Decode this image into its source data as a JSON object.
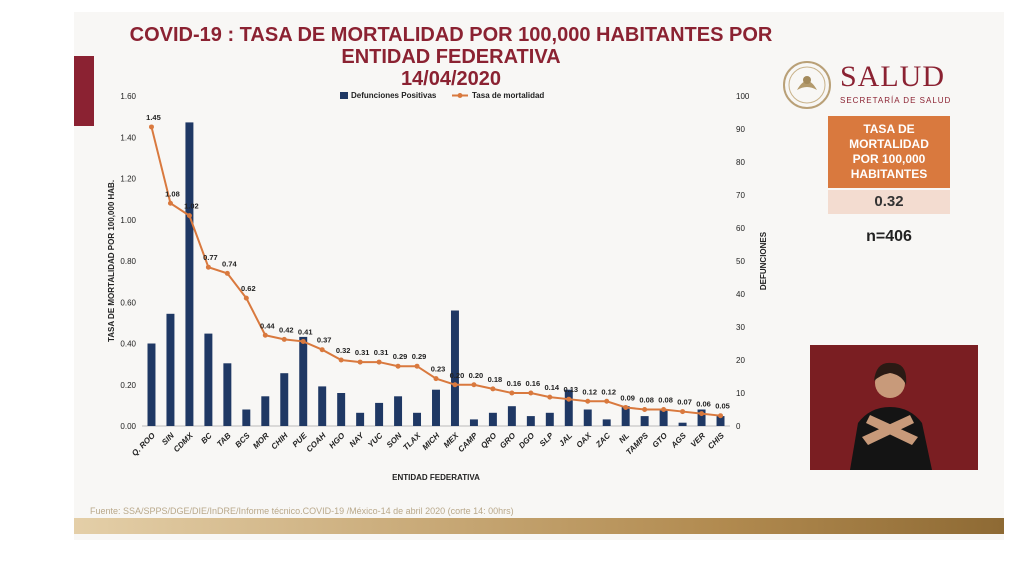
{
  "header": {
    "title_line1": "COVID-19 : TASA DE MORTALIDAD POR 100,000 HABITANTES POR",
    "title_line2": "ENTIDAD FEDERATIVA",
    "title_line3": "14/04/2020"
  },
  "logo": {
    "name": "SALUD",
    "subtitle": "SECRETARÍA DE SALUD"
  },
  "kpi": {
    "label_line1": "TASA DE",
    "label_line2": "MORTALIDAD",
    "label_line3": "POR 100,000",
    "label_line4": "HABITANTES",
    "value": "0.32",
    "n": "n=406"
  },
  "source": "Fuente: SSA/SPPS/DGE/DIE/InDRE/Informe técnico.COVID-19 /México-14 de abril 2020 (corte 14: 00hrs)",
  "colors": {
    "bar": "#1f3864",
    "line": "#d9793e",
    "brand": "#8b2232"
  },
  "chart_data": {
    "type": "bar",
    "xlabel": "ENTIDAD FEDERATIVA",
    "ylabel": "TASA DE MORTALIDAD POR 100,000 HAB.",
    "y2label": "DEFUNCIONES",
    "ylim": [
      0,
      1.6
    ],
    "y2lim": [
      0,
      100
    ],
    "yticks": [
      "0.00",
      "0.20",
      "0.40",
      "0.60",
      "0.80",
      "1.00",
      "1.20",
      "1.40",
      "1.60"
    ],
    "y2ticks": [
      "0",
      "10",
      "20",
      "30",
      "40",
      "50",
      "60",
      "70",
      "80",
      "90",
      "100"
    ],
    "categories": [
      "Q. ROO",
      "SIN",
      "CDMX",
      "BC",
      "TAB",
      "BCS",
      "MOR",
      "CHIH",
      "PUE",
      "COAH",
      "HGO",
      "NAY",
      "YUC",
      "SON",
      "TLAX",
      "MICH",
      "MEX",
      "CAMP",
      "QRO",
      "GRO",
      "DGO",
      "SLP",
      "JAL",
      "OAX",
      "ZAC",
      "NL",
      "TAMPS",
      "GTO",
      "AGS",
      "VER",
      "CHIS"
    ],
    "series": [
      {
        "name": "Defunciones Positivas",
        "type": "bar",
        "axis": "right",
        "values": [
          25,
          34,
          92,
          28,
          19,
          5,
          9,
          16,
          27,
          12,
          10,
          4,
          7,
          9,
          4,
          11,
          35,
          2,
          4,
          6,
          3,
          4,
          11,
          5,
          2,
          6,
          3,
          5,
          1,
          5,
          3
        ]
      },
      {
        "name": "Tasa de mortalidad",
        "type": "line",
        "axis": "left",
        "values": [
          1.45,
          1.08,
          1.02,
          0.77,
          0.74,
          0.62,
          0.44,
          0.42,
          0.41,
          0.37,
          0.32,
          0.31,
          0.31,
          0.29,
          0.29,
          0.23,
          0.2,
          0.2,
          0.18,
          0.16,
          0.16,
          0.14,
          0.13,
          0.12,
          0.12,
          0.09,
          0.08,
          0.08,
          0.07,
          0.06,
          0.05
        ],
        "labels": [
          "1.45",
          "1.08",
          "1.02",
          "0.77",
          "0.74",
          "0.62",
          "0.44",
          "0.42",
          "0.41",
          "0.37",
          "0.32",
          "0.31",
          "0.31",
          "0.29",
          "0.29",
          "0.23",
          "0.20",
          "0.20",
          "0.18",
          "0.16",
          "0.16",
          "0.14",
          "0.13",
          "0.12",
          "0.12",
          "0.09",
          "0.08",
          "0.08",
          "0.07",
          "0.06",
          "0.05"
        ]
      }
    ]
  }
}
